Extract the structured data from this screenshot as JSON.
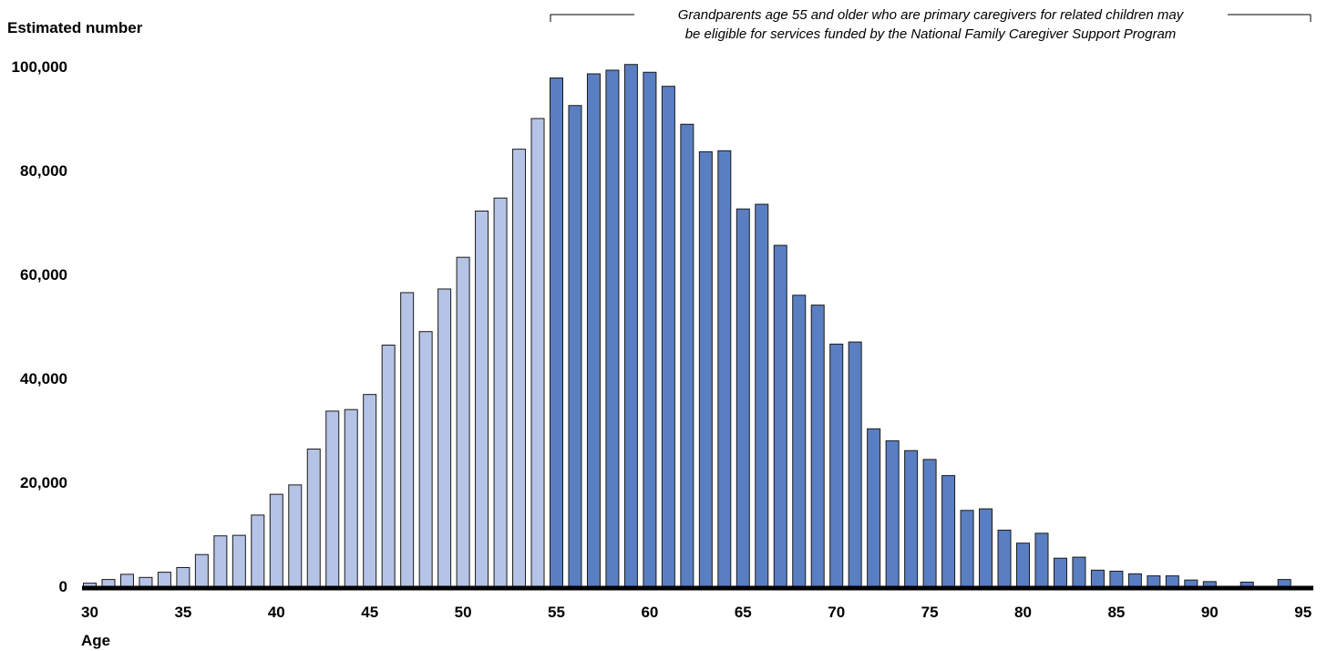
{
  "chart_data": {
    "type": "bar",
    "ylabel": "Estimated number",
    "xlabel": "Age",
    "annotation": {
      "line1": "Grandparents age 55 and older who are primary caregivers for related children may",
      "line2": "be eligible for services funded by the National Family Caregiver Support Program",
      "range": [
        55,
        95
      ]
    },
    "ylim": [
      0,
      100000
    ],
    "yticks": [
      "0",
      "20,000",
      "40,000",
      "60,000",
      "80,000",
      "100,000"
    ],
    "ytick_values": [
      0,
      20000,
      40000,
      60000,
      80000,
      100000
    ],
    "xticks": [
      30,
      35,
      40,
      45,
      50,
      55,
      60,
      65,
      70,
      75,
      80,
      85,
      90,
      95
    ],
    "highlight_from_age": 55,
    "colors": {
      "under55": "#b4c3e6",
      "age55plus": "#5a7ec2",
      "outline": "#1a1a1a",
      "axis": "#000000"
    },
    "grid": false,
    "categories": [
      30,
      31,
      32,
      33,
      34,
      35,
      36,
      37,
      38,
      39,
      40,
      41,
      42,
      43,
      44,
      45,
      46,
      47,
      48,
      49,
      50,
      51,
      52,
      53,
      54,
      55,
      56,
      57,
      58,
      59,
      60,
      61,
      62,
      63,
      64,
      65,
      66,
      67,
      68,
      69,
      70,
      71,
      72,
      73,
      74,
      75,
      76,
      77,
      78,
      79,
      80,
      81,
      82,
      83,
      84,
      85,
      86,
      87,
      88,
      89,
      90,
      91,
      92,
      93,
      94
    ],
    "values": [
      600,
      1300,
      2300,
      1700,
      2700,
      3600,
      6100,
      9700,
      9800,
      13700,
      17700,
      19500,
      26400,
      33700,
      34000,
      36900,
      46400,
      56500,
      49000,
      57200,
      63300,
      72200,
      74700,
      84100,
      90000,
      97800,
      92500,
      98600,
      99300,
      100400,
      98900,
      96200,
      88900,
      83600,
      83800,
      72600,
      73500,
      65600,
      56000,
      54100,
      46600,
      47000,
      30300,
      28000,
      26100,
      24400,
      21300,
      14600,
      14900,
      10800,
      8300,
      10200,
      5400,
      5600,
      3100,
      2900,
      2400,
      2000,
      2000,
      1200,
      900,
      0,
      800,
      0,
      1300
    ]
  }
}
